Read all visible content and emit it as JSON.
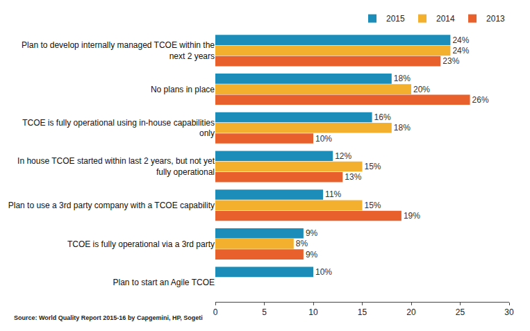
{
  "chart_data": {
    "type": "bar",
    "orientation": "horizontal",
    "categories": [
      "Plan to develop internally managed TCOE within the next 2 years",
      "No plans in place",
      "TCOE is fully operational using in-house capabilities only",
      "In house TCOE started within last 2 years, but not yet fully operational",
      "Plan to use a 3rd party company with a TCOE capability",
      "TCOE is fully operational via a 3rd party",
      "Plan to start an Agile TCOE"
    ],
    "series": [
      {
        "name": "2015",
        "color": "#1b8db8",
        "values": [
          24,
          18,
          16,
          12,
          11,
          9,
          10
        ],
        "value_labels": [
          "24%",
          "18%",
          "16%",
          "12%",
          "11%",
          "9%",
          "10%"
        ]
      },
      {
        "name": "2014",
        "color": "#f3b02e",
        "values": [
          24,
          20,
          18,
          15,
          15,
          8,
          null
        ],
        "value_labels": [
          "24%",
          "20%",
          "18%",
          "15%",
          "15%",
          "8%",
          null
        ]
      },
      {
        "name": "2013",
        "color": "#e8602c",
        "values": [
          23,
          26,
          10,
          13,
          19,
          9,
          null
        ],
        "value_labels": [
          "23%",
          "26%",
          "10%",
          "13%",
          "19%",
          "9%",
          null
        ]
      }
    ],
    "xlim": [
      0,
      30
    ],
    "xticks": [
      0,
      5,
      10,
      15,
      20,
      25,
      30
    ],
    "grid": false,
    "legend": "top-right",
    "data_labels": true,
    "annotations": [
      "Source: World Quality Report 2015-16 by Capgemini, HP, Sogeti"
    ]
  }
}
